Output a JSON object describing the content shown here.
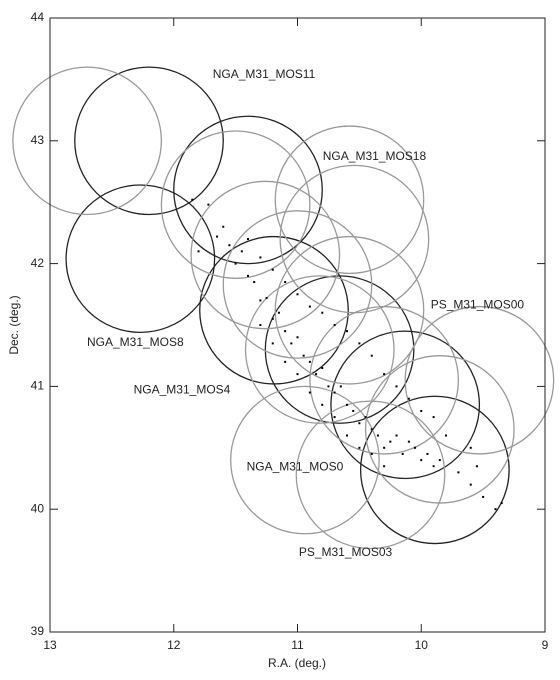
{
  "chart_data": {
    "type": "scatter",
    "x_label": "R.A. (deg.)",
    "y_label": "Dec. (deg.)",
    "xlim": [
      13,
      9
    ],
    "xticks": [
      13,
      12,
      11,
      10,
      9
    ],
    "ylim": [
      39,
      44
    ],
    "yticks": [
      39,
      40,
      41,
      42,
      43,
      44
    ],
    "point_color": "#000000",
    "x": [
      11.85,
      11.72,
      11.65,
      11.6,
      11.55,
      11.5,
      11.45,
      11.4,
      11.35,
      11.3,
      11.25,
      11.2,
      11.15,
      11.1,
      11.05,
      11.0,
      10.95,
      10.9,
      10.85,
      10.8,
      10.75,
      10.7,
      10.65,
      10.6,
      10.55,
      10.5,
      10.45,
      10.4,
      10.35,
      10.3,
      10.25,
      10.2,
      10.15,
      10.1,
      10.05,
      10.0,
      9.95,
      9.9,
      9.85,
      9.7,
      9.6,
      9.5,
      9.4,
      9.35,
      11.4,
      11.3,
      11.2,
      11.1,
      11.0,
      10.9,
      10.8,
      10.7,
      10.6,
      10.5,
      10.4,
      10.3,
      10.2,
      10.1,
      10.0,
      9.9,
      9.8,
      11.3,
      11.2,
      11.1,
      11.0,
      10.9,
      10.8,
      10.7,
      10.6,
      10.5,
      10.4,
      10.3,
      11.8,
      9.6,
      9.55
    ],
    "y": [
      42.52,
      42.48,
      42.22,
      42.3,
      42.15,
      42.0,
      42.1,
      41.9,
      41.85,
      41.7,
      41.72,
      41.55,
      41.6,
      41.45,
      41.35,
      41.4,
      41.25,
      41.2,
      41.1,
      41.15,
      41.0,
      40.95,
      41.0,
      40.85,
      40.8,
      40.7,
      40.75,
      40.65,
      40.6,
      40.5,
      40.55,
      40.6,
      40.45,
      40.55,
      40.5,
      40.4,
      40.45,
      40.35,
      40.4,
      40.3,
      40.2,
      40.1,
      40.0,
      40.05,
      42.2,
      42.05,
      41.95,
      41.85,
      41.75,
      41.65,
      41.6,
      41.5,
      41.45,
      41.35,
      41.25,
      41.1,
      41.0,
      40.9,
      40.8,
      40.75,
      40.6,
      41.5,
      41.35,
      41.2,
      41.1,
      40.95,
      40.85,
      40.75,
      40.6,
      40.5,
      40.45,
      40.35,
      42.1,
      40.5,
      40.35
    ],
    "fields": [
      {
        "ra": 12.2,
        "dec": 43.0,
        "radius": 0.6,
        "color": "#222222",
        "label": "NGA_M31_MOS11"
      },
      {
        "ra": 12.27,
        "dec": 42.04,
        "radius": 0.6,
        "color": "#222222",
        "label": "NGA_M31_MOS8"
      },
      {
        "ra": 11.4,
        "dec": 42.6,
        "radius": 0.6,
        "color": "#222222"
      },
      {
        "ra": 11.19,
        "dec": 41.62,
        "radius": 0.6,
        "color": "#222222",
        "label": "NGA_M31_MOS4"
      },
      {
        "ra": 10.66,
        "dec": 41.3,
        "radius": 0.6,
        "color": "#222222"
      },
      {
        "ra": 10.13,
        "dec": 40.85,
        "radius": 0.6,
        "color": "#222222"
      },
      {
        "ra": 9.89,
        "dec": 40.32,
        "radius": 0.6,
        "color": "#222222"
      },
      {
        "ra": 12.7,
        "dec": 43.0,
        "radius": 0.6,
        "color": "#999999"
      },
      {
        "ra": 11.5,
        "dec": 42.48,
        "radius": 0.6,
        "color": "#999999"
      },
      {
        "ra": 10.58,
        "dec": 42.52,
        "radius": 0.6,
        "color": "#999999",
        "label": "NGA_M31_MOS18"
      },
      {
        "ra": 10.54,
        "dec": 42.2,
        "radius": 0.6,
        "color": "#999999"
      },
      {
        "ra": 11.26,
        "dec": 42.07,
        "radius": 0.6,
        "color": "#999999"
      },
      {
        "ra": 11.0,
        "dec": 41.83,
        "radius": 0.6,
        "color": "#999999"
      },
      {
        "ra": 10.58,
        "dec": 41.62,
        "radius": 0.6,
        "color": "#999999"
      },
      {
        "ra": 10.82,
        "dec": 41.3,
        "radius": 0.6,
        "color": "#999999"
      },
      {
        "ra": 10.3,
        "dec": 41.05,
        "radius": 0.6,
        "color": "#999999"
      },
      {
        "ra": 9.53,
        "dec": 41.05,
        "radius": 0.6,
        "color": "#999999",
        "label": "PS_M31_MOS00"
      },
      {
        "ra": 10.94,
        "dec": 40.4,
        "radius": 0.6,
        "color": "#999999",
        "label": "NGA_M31_MOS0"
      },
      {
        "ra": 10.41,
        "dec": 40.28,
        "radius": 0.6,
        "color": "#999999",
        "label": "PS_M31_MOS03"
      },
      {
        "ra": 9.85,
        "dec": 40.65,
        "radius": 0.6,
        "color": "#999999"
      }
    ]
  }
}
